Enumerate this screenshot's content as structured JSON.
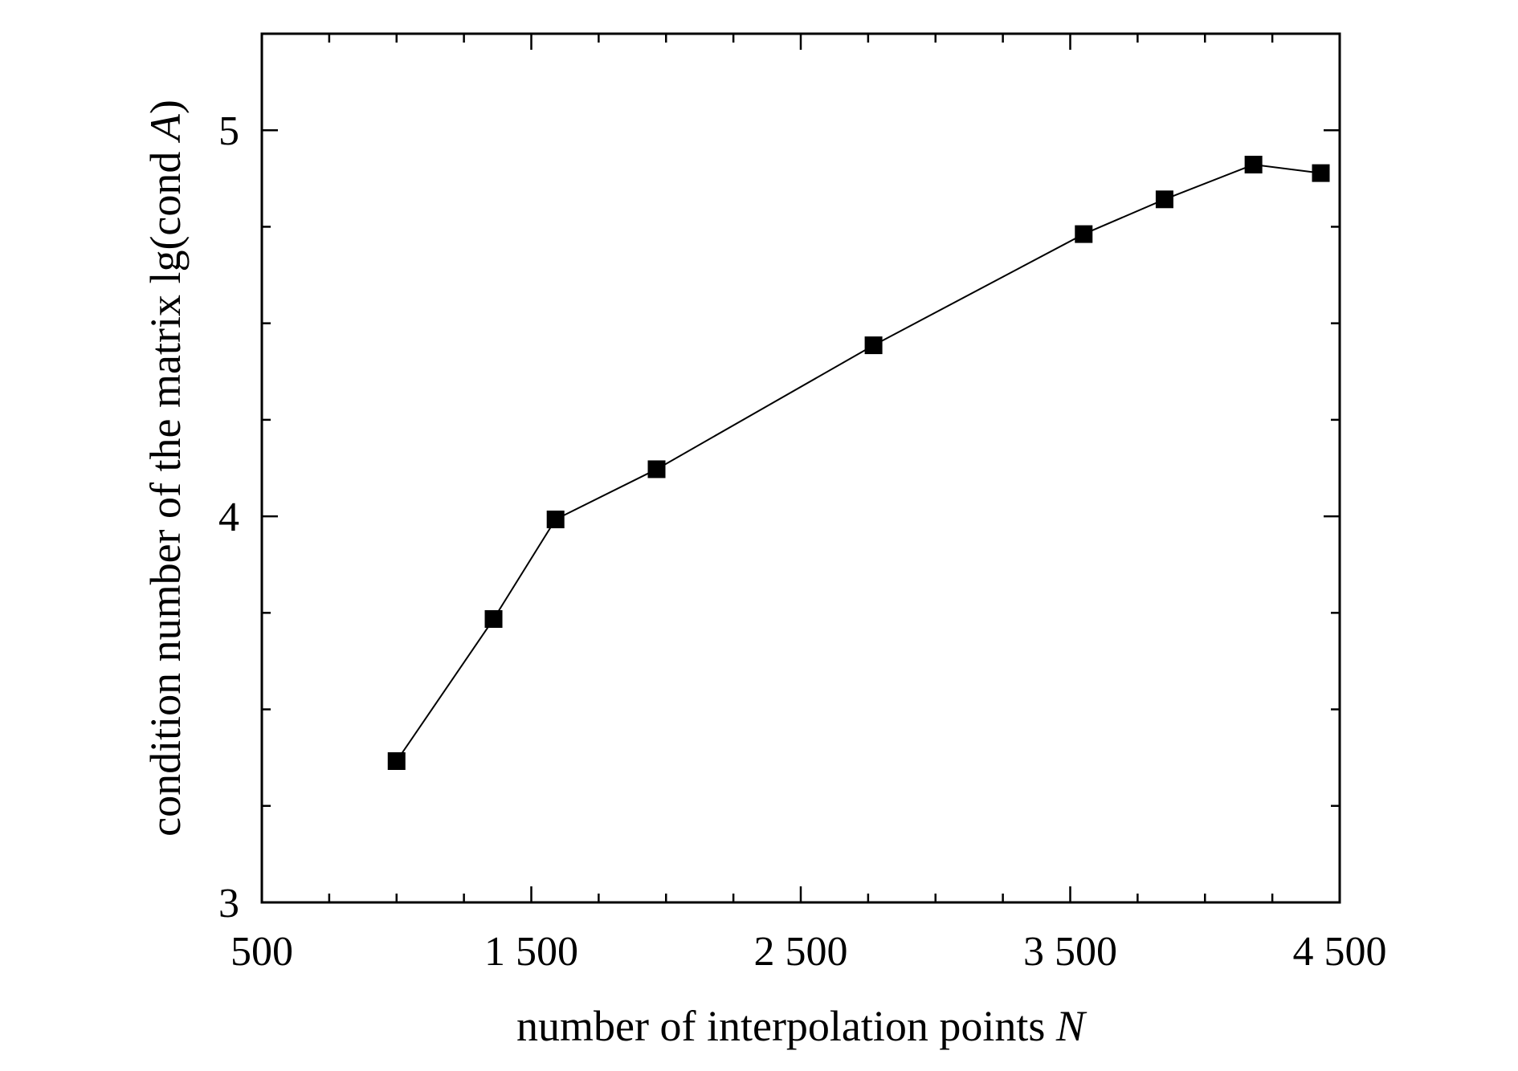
{
  "chart_data": {
    "type": "line",
    "title": "",
    "xlabel": "number of interpolation points",
    "xlabel_var": "N",
    "ylabel": "condition number of the matrix lg(cond",
    "ylabel_var": "A",
    "ylabel_close": ")",
    "xlim": [
      500,
      4500
    ],
    "ylim": [
      3,
      5.25
    ],
    "x_ticks": [
      500,
      1500,
      2500,
      3500,
      4500
    ],
    "x_tick_labels": [
      "500",
      "1 500",
      "2 500",
      "3 500",
      "4 500"
    ],
    "x_minor_step": 250,
    "y_ticks": [
      3,
      4,
      5
    ],
    "y_tick_labels": [
      "3",
      "4",
      "5"
    ],
    "y_minor_step": 0.25,
    "grid": false,
    "legend": "none",
    "marker": "square",
    "color": "#000000",
    "series": [
      {
        "x": [
          1000,
          1360,
          1590,
          1965,
          2770,
          3550,
          3850,
          4180,
          4430
        ],
        "y": [
          3.366,
          3.734,
          3.992,
          4.122,
          4.443,
          4.731,
          4.821,
          4.911,
          4.889
        ]
      }
    ]
  }
}
